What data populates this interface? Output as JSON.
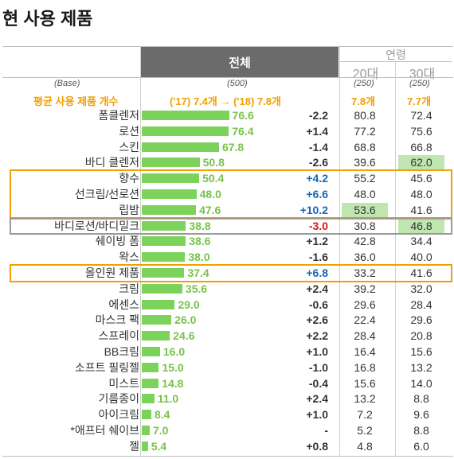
{
  "title": "현 사용 제품",
  "header": {
    "total": "전체",
    "age_group": "연령",
    "age_cols": [
      "20대",
      "30대"
    ]
  },
  "base": {
    "label": "(Base)",
    "total": "(500)",
    "age20": "(250)",
    "age30": "(250)"
  },
  "avg": {
    "label": "평균 사용 제품 개수",
    "total": "('17) 7.4개 → ('18) 7.8개",
    "age20": "7.8개",
    "age30": "7.7개"
  },
  "colors": {
    "bar": "#7cd35c",
    "value": "#79c24a",
    "increase": "#1566b8",
    "decrease": "#e01010",
    "orange_box": "#f0a000",
    "gray_box": "#9a9a9a",
    "highlight": "#bfe6b0"
  },
  "chart_data": {
    "type": "bar",
    "orientation": "horizontal",
    "categories": [
      "폼클렌저",
      "로션",
      "스킨",
      "바디 클렌저",
      "향수",
      "선크림/선로션",
      "립밤",
      "바디로션/바디밀크",
      "쉐이빙 폼",
      "왁스",
      "올인원 제품",
      "크림",
      "에센스",
      "마스크 팩",
      "스프레이",
      "BB크림",
      "소프트 필링젤",
      "미스트",
      "기름종이",
      "아이크림",
      "*애프터 쉐이브",
      "젤"
    ],
    "values": [
      76.6,
      76.4,
      67.8,
      50.8,
      50.4,
      48.0,
      47.6,
      38.8,
      38.6,
      38.0,
      37.4,
      35.6,
      29.0,
      26.0,
      24.6,
      16.0,
      15.0,
      14.8,
      11.0,
      8.4,
      7.0,
      5.4
    ],
    "value_labels": [
      "76.6",
      "76.4",
      "67.8",
      "50.8",
      "50.4",
      "48.0",
      "47.6",
      "38.8",
      "38.6",
      "38.0",
      "37.4",
      "35.6",
      "29.0",
      "26.0",
      "24.6",
      "16.0",
      "15.0",
      "14.8",
      "11.0",
      "8.4",
      "7.0",
      "5.4"
    ],
    "change": [
      "-2.2",
      "+1.4",
      "-1.4",
      "-2.6",
      "+4.2",
      "+6.6",
      "+10.2",
      "-3.0",
      "+1.2",
      "-1.6",
      "+6.8",
      "+2.4",
      "-0.6",
      "+2.6",
      "+2.2",
      "+1.0",
      "-1.0",
      "-0.4",
      "+2.4",
      "+1.0",
      "-",
      "+0.8"
    ],
    "age20": [
      "80.8",
      "77.2",
      "68.8",
      "39.6",
      "55.2",
      "48.0",
      "53.6",
      "30.8",
      "42.8",
      "36.0",
      "33.2",
      "39.2",
      "29.6",
      "22.4",
      "28.4",
      "16.4",
      "16.8",
      "15.6",
      "13.2",
      "7.2",
      "5.2",
      "4.8"
    ],
    "age30": [
      "72.4",
      "75.6",
      "66.8",
      "62.0",
      "45.6",
      "48.0",
      "41.6",
      "46.8",
      "34.4",
      "40.0",
      "41.6",
      "32.0",
      "28.4",
      "29.6",
      "20.8",
      "15.6",
      "13.2",
      "14.0",
      "8.8",
      "9.6",
      "8.8",
      "6.0"
    ],
    "highlight_age20": [
      6
    ],
    "highlight_age30": [
      3,
      7
    ],
    "boxes": [
      {
        "rows": [
          4,
          6
        ],
        "color": "orange"
      },
      {
        "rows": [
          7,
          7
        ],
        "color": "gray"
      },
      {
        "rows": [
          10,
          10
        ],
        "color": "orange"
      }
    ]
  }
}
